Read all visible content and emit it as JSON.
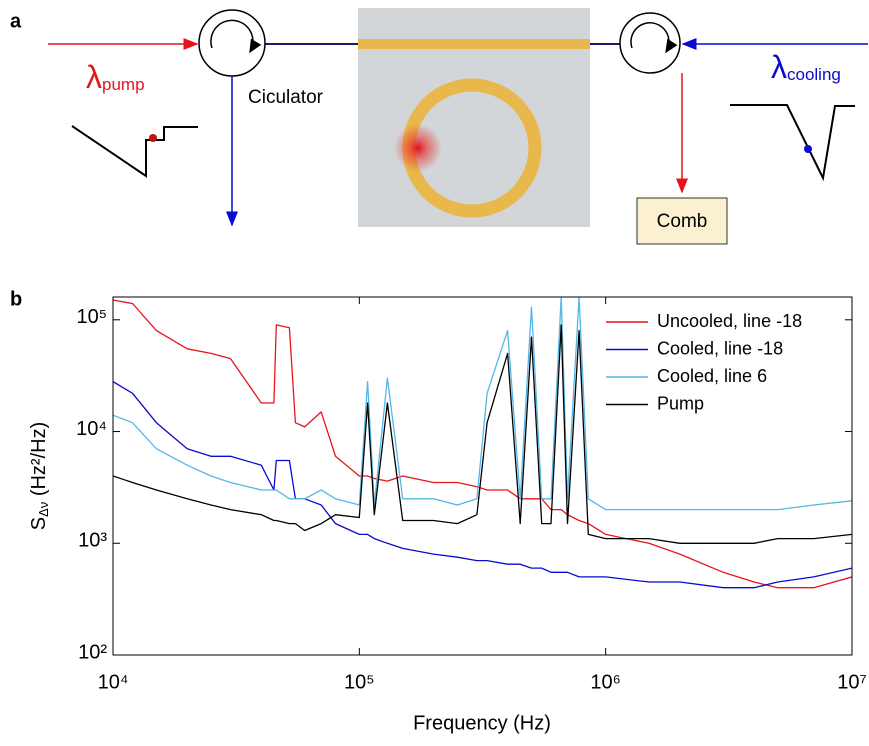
{
  "diagram": {
    "panel_label": "a",
    "pump_symbol": "λ",
    "pump_subscript": "pump",
    "circulator_label": "Ciculator",
    "cooling_symbol": "λ",
    "cooling_subscript": "cooling",
    "comb_label": "Comb"
  },
  "chart_data": {
    "type": "line",
    "panel_label": "b",
    "xlabel": "Frequency (Hz)",
    "ylabel": "S",
    "ylabel_sub": "Δν",
    "ylabel_unit": "(Hz²/Hz)",
    "xscale": "log",
    "yscale": "log",
    "xlim": [
      10000,
      10000000
    ],
    "ylim": [
      100,
      160000
    ],
    "xticks": [
      {
        "value": 10000,
        "label": "10⁴"
      },
      {
        "value": 100000,
        "label": "10⁵"
      },
      {
        "value": 1000000,
        "label": "10⁶"
      },
      {
        "value": 10000000,
        "label": "10⁷"
      }
    ],
    "yticks": [
      {
        "value": 100,
        "label": "10²"
      },
      {
        "value": 1000,
        "label": "10³"
      },
      {
        "value": 10000,
        "label": "10⁴"
      },
      {
        "value": 100000,
        "label": "10⁵"
      }
    ],
    "grid": false,
    "legend": "upper right",
    "x": [
      10000,
      12000,
      15000,
      20000,
      25000,
      30000,
      40000,
      45000,
      46000,
      52000,
      55000,
      60000,
      70000,
      80000,
      100000,
      108000,
      115000,
      130000,
      150000,
      200000,
      250000,
      300000,
      330000,
      400000,
      450000,
      500000,
      550000,
      600000,
      660000,
      700000,
      780000,
      850000,
      1000000,
      1500000,
      2000000,
      3000000,
      4000000,
      5000000,
      7000000,
      10000000
    ],
    "series": [
      {
        "name": "Uncooled, line -18",
        "color": "#e8141c",
        "values": [
          150000,
          140000,
          80000,
          55000,
          50000,
          45000,
          18000,
          18000,
          90000,
          85000,
          12000,
          11000,
          15000,
          6000,
          4000,
          4000,
          3800,
          3600,
          4000,
          3500,
          3500,
          3200,
          3000,
          3000,
          2500,
          2500,
          2500,
          2000,
          2000,
          1800,
          1600,
          1500,
          1200,
          1000,
          800,
          550,
          450,
          400,
          400,
          500
        ]
      },
      {
        "name": "Cooled, line -18",
        "color": "#0a0ad0",
        "values": [
          28000,
          22000,
          12000,
          7000,
          6000,
          6000,
          5000,
          3000,
          5500,
          5500,
          2500,
          2500,
          2200,
          1500,
          1200,
          1200,
          1100,
          1000,
          900,
          800,
          750,
          700,
          700,
          650,
          650,
          600,
          600,
          550,
          550,
          550,
          500,
          500,
          500,
          450,
          450,
          400,
          400,
          450,
          500,
          600
        ]
      },
      {
        "name": "Cooled, line 6",
        "color": "#55b6e6",
        "values": [
          14000,
          12000,
          7000,
          5000,
          4000,
          3500,
          3000,
          3000,
          3000,
          2500,
          2500,
          2500,
          3000,
          2500,
          2200,
          28000,
          2200,
          30000,
          2500,
          2500,
          2200,
          2500,
          22000,
          80000,
          2500,
          130000,
          2500,
          2500,
          160000,
          2500,
          160000,
          2500,
          2000,
          2000,
          2000,
          2000,
          2000,
          2000,
          2200,
          2400
        ]
      },
      {
        "name": "Pump",
        "color": "#000000",
        "values": [
          4000,
          3500,
          3000,
          2500,
          2200,
          2000,
          1800,
          1600,
          1600,
          1500,
          1500,
          1300,
          1500,
          1800,
          1700,
          18000,
          1800,
          18000,
          1600,
          1600,
          1500,
          1800,
          12000,
          50000,
          1500,
          70000,
          1500,
          1500,
          90000,
          1500,
          80000,
          1200,
          1100,
          1100,
          1000,
          1000,
          1000,
          1100,
          1100,
          1200
        ]
      }
    ]
  }
}
